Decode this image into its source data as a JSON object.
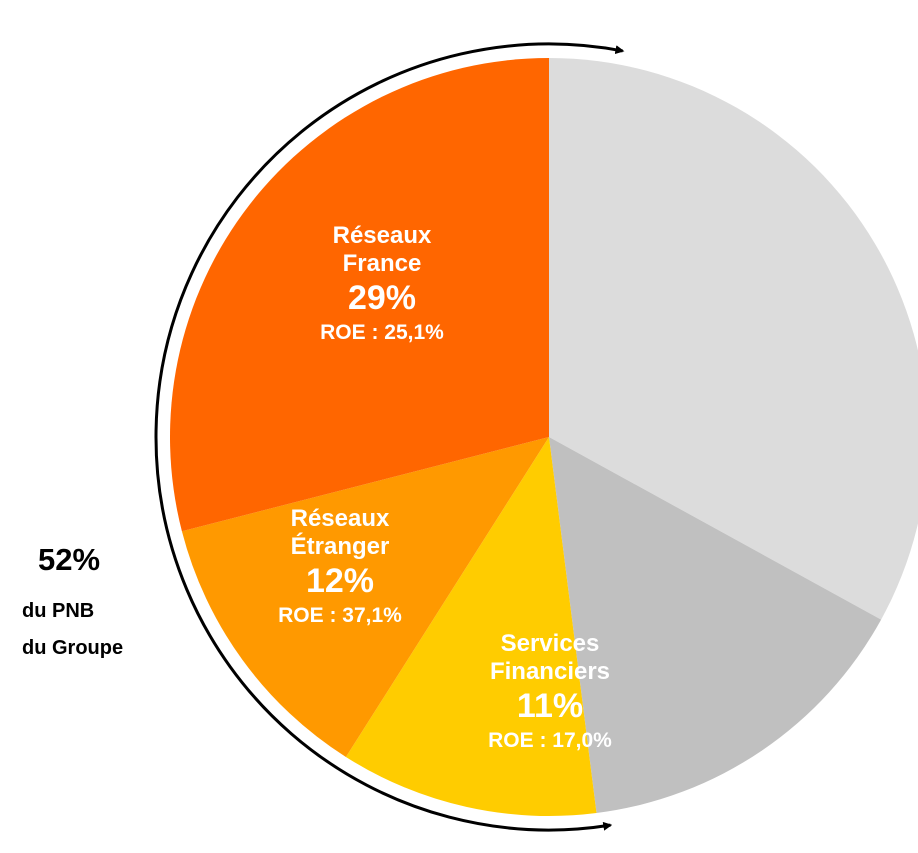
{
  "chart_data": {
    "type": "pie",
    "categories": [
      null,
      null,
      "Services Financiers",
      "Réseaux Étranger",
      "Réseaux France"
    ],
    "values": [
      33,
      15,
      11,
      12,
      29
    ],
    "value_labels": [
      null,
      null,
      "11%",
      "12%",
      "29%"
    ],
    "roe_labels": [
      null,
      null,
      "ROE : 17,0%",
      "ROE : 37,1%",
      "ROE : 25,1%"
    ],
    "colors": [
      "#dcdcdc",
      "#c0c0c0",
      "#ffcc00",
      "#ff9900",
      "#ff6600"
    ],
    "side_annotation": [
      "52%",
      "du PNB",
      "du Groupe"
    ]
  }
}
